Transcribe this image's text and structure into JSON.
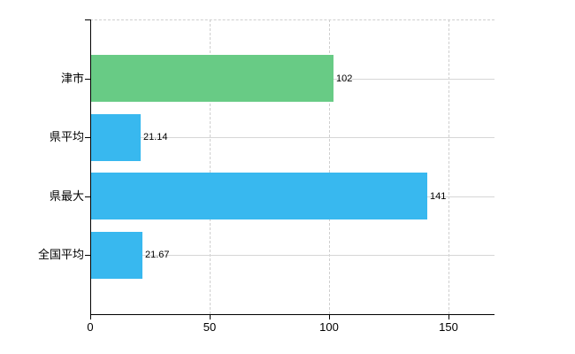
{
  "chart_data": {
    "type": "bar",
    "orientation": "horizontal",
    "title": "",
    "xlabel": "",
    "ylabel": "",
    "categories": [
      "津市",
      "県平均",
      "県最大",
      "全国平均"
    ],
    "values": [
      102,
      21.14,
      141,
      21.67
    ],
    "value_labels": [
      "102",
      "21.14",
      "141",
      "21.67"
    ],
    "bar_colors": [
      "#68cb85",
      "#38b8ef",
      "#38b8ef",
      "#38b8ef"
    ],
    "x_ticks": [
      0,
      50,
      100,
      150
    ],
    "x_tick_labels": [
      "0",
      "50",
      "100",
      "150"
    ],
    "xlim": [
      0,
      169
    ],
    "grid": true,
    "legend_position": "none"
  },
  "colors": {
    "background": "#ffffff",
    "axis": "#000000",
    "horizontal_gridline": "#d6d6d6",
    "dashed_gridline": "#cfcfcf",
    "label_text": "#000000",
    "green_bar": "#68cb85",
    "blue_bar": "#38b8ef"
  }
}
